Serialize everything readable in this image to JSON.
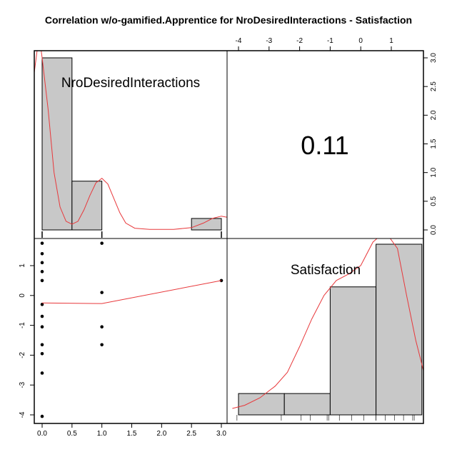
{
  "page": {
    "title": "Correlation w/o-gamified.Apprentice for NroDesiredInteractions - Satisfaction"
  },
  "chart_data": {
    "type": "pairs",
    "variables": [
      "NroDesiredInteractions",
      "Satisfaction"
    ],
    "correlation_label": "0.11",
    "histogram_nro": {
      "bins": [
        [
          0,
          0.5
        ],
        [
          0.5,
          1.0
        ],
        [
          2.5,
          3.0
        ]
      ],
      "density": [
        3.0,
        0.85,
        0.2
      ],
      "ylim": [
        0,
        3.0
      ],
      "right_axis_ticks": [
        "0.0",
        "0.5",
        "1.0",
        "1.5",
        "2.0",
        "2.5",
        "3.0"
      ],
      "density_curve": [
        [
          -0.15,
          2.6
        ],
        [
          -0.05,
          3.4
        ],
        [
          0.0,
          3.0
        ],
        [
          0.1,
          2.1
        ],
        [
          0.2,
          1.0
        ],
        [
          0.3,
          0.4
        ],
        [
          0.4,
          0.15
        ],
        [
          0.5,
          0.1
        ],
        [
          0.6,
          0.15
        ],
        [
          0.7,
          0.35
        ],
        [
          0.8,
          0.6
        ],
        [
          0.9,
          0.82
        ],
        [
          1.0,
          0.9
        ],
        [
          1.1,
          0.8
        ],
        [
          1.2,
          0.55
        ],
        [
          1.3,
          0.3
        ],
        [
          1.4,
          0.12
        ],
        [
          1.55,
          0.03
        ],
        [
          1.8,
          0.01
        ],
        [
          2.2,
          0.01
        ],
        [
          2.5,
          0.04
        ],
        [
          2.7,
          0.12
        ],
        [
          2.85,
          0.2
        ],
        [
          3.0,
          0.24
        ],
        [
          3.1,
          0.22
        ],
        [
          3.15,
          0.18
        ]
      ]
    },
    "histogram_satisfaction": {
      "breaks": [
        -4.0,
        -2.5,
        -1.0,
        0.5,
        2.0
      ],
      "counts": [
        1,
        1,
        6,
        8
      ],
      "top_axis_ticks": [
        "-4",
        "-3",
        "-2",
        "-1",
        "0",
        "1"
      ],
      "density_curve": [
        [
          -4.2,
          0.3
        ],
        [
          -3.8,
          0.45
        ],
        [
          -3.3,
          0.8
        ],
        [
          -2.8,
          1.35
        ],
        [
          -2.4,
          2.0
        ],
        [
          -2.0,
          3.2
        ],
        [
          -1.6,
          4.5
        ],
        [
          -1.2,
          5.6
        ],
        [
          -0.8,
          6.3
        ],
        [
          -0.4,
          6.6
        ],
        [
          0.0,
          7.0
        ],
        [
          0.4,
          8.1
        ],
        [
          0.8,
          8.6
        ],
        [
          1.2,
          7.8
        ],
        [
          1.5,
          5.6
        ],
        [
          1.8,
          3.5
        ],
        [
          2.1,
          1.8
        ]
      ],
      "rug": [
        -4.05,
        -2.6,
        -1.95,
        -1.65,
        -1.1,
        -1.05,
        -0.7,
        -0.3,
        0.1,
        0.5,
        0.5,
        0.8,
        1.1,
        1.4,
        1.7,
        1.75
      ]
    },
    "scatter": {
      "points": [
        [
          0,
          1.75
        ],
        [
          0,
          1.4
        ],
        [
          0,
          1.1
        ],
        [
          0,
          0.8
        ],
        [
          0,
          0.5
        ],
        [
          0,
          -0.3
        ],
        [
          0,
          -0.7
        ],
        [
          0,
          -1.05
        ],
        [
          0,
          -1.65
        ],
        [
          0,
          -1.95
        ],
        [
          0,
          -2.6
        ],
        [
          0,
          -4.05
        ],
        [
          1,
          1.75
        ],
        [
          1,
          0.1
        ],
        [
          1,
          -1.05
        ],
        [
          1,
          -1.65
        ],
        [
          3,
          0.5
        ]
      ],
      "smooth_line": [
        [
          0,
          -0.25
        ],
        [
          1,
          -0.27
        ],
        [
          3,
          0.5
        ]
      ],
      "x_ticks": [
        "0.0",
        "0.5",
        "1.0",
        "1.5",
        "2.0",
        "2.5",
        "3.0"
      ],
      "y_ticks": [
        "-4",
        "-3",
        "-2",
        "-1",
        "0",
        "1"
      ]
    },
    "colors": {
      "histogram_fill": "#c8c8c8",
      "density_line": "#e8383b",
      "points": "#000000"
    }
  }
}
